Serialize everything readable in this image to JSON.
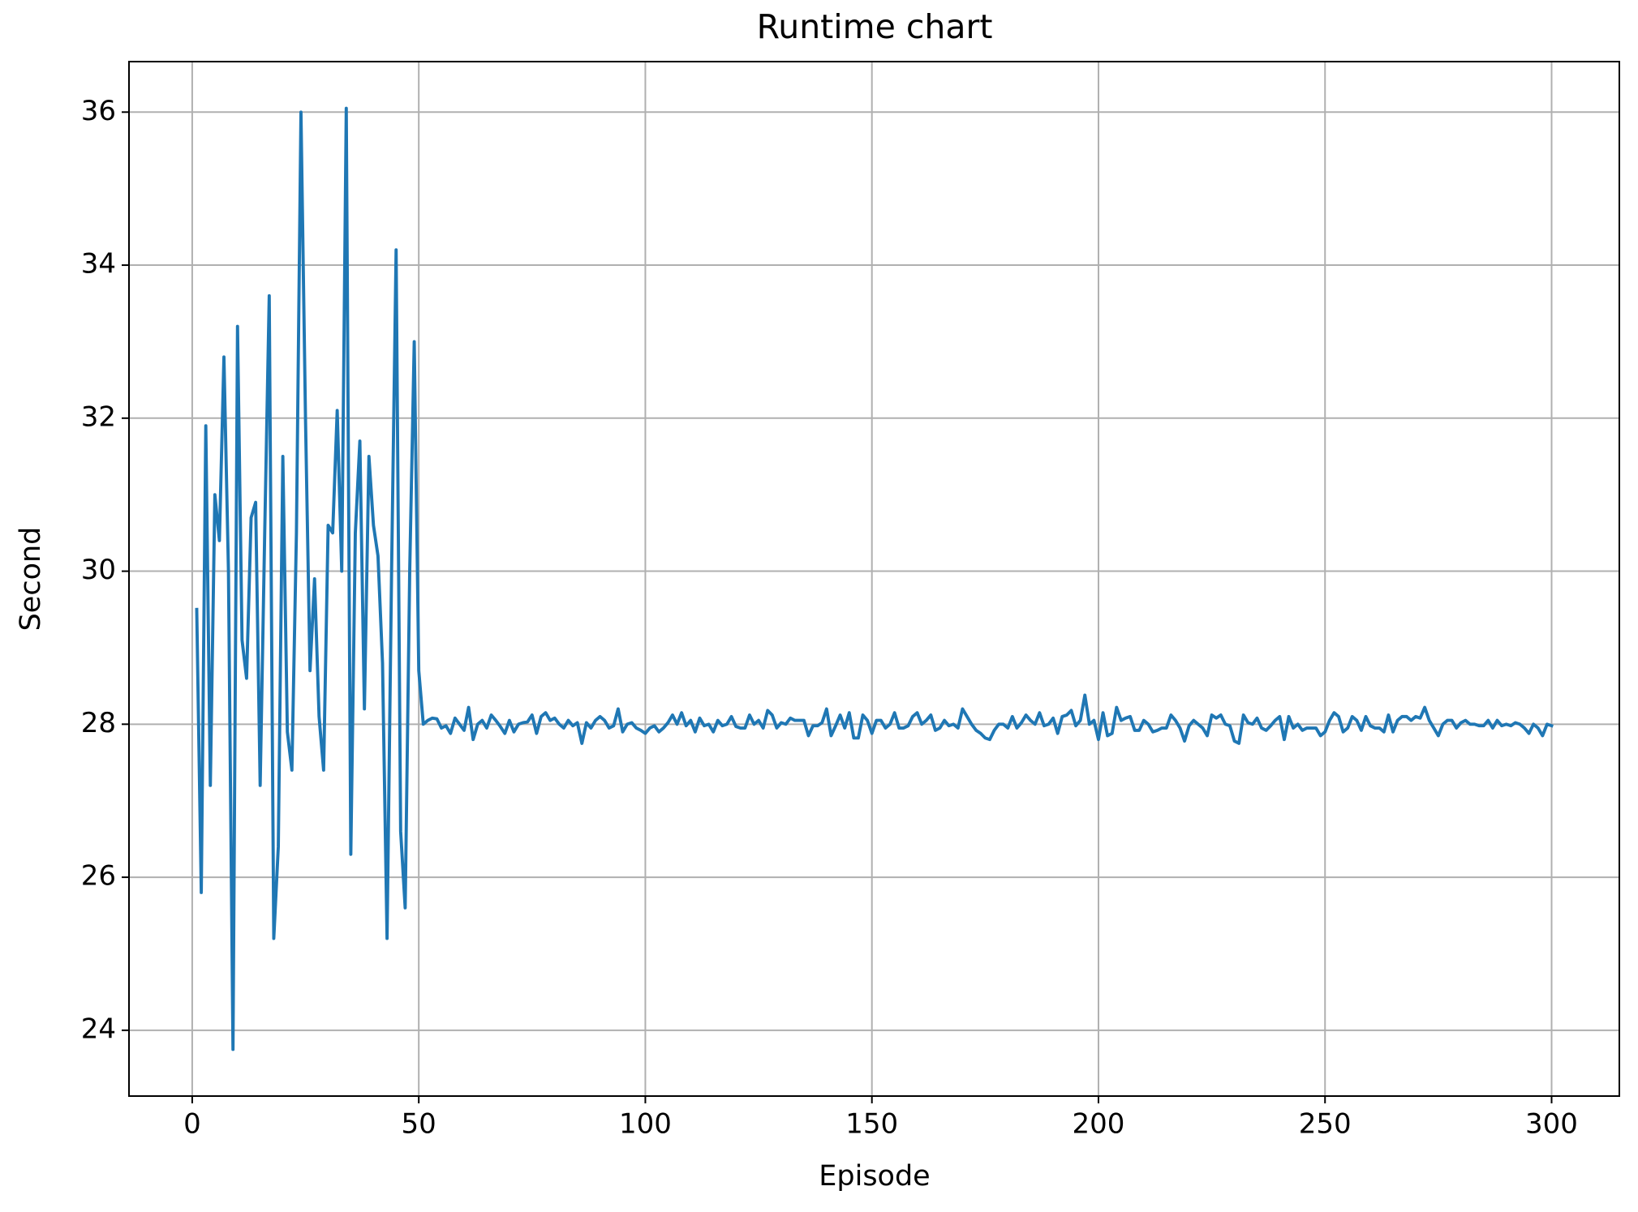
{
  "chart_data": {
    "type": "line",
    "title": "Runtime chart",
    "x_label": "Episode",
    "y_label": "Second",
    "x": [
      1,
      2,
      3,
      4,
      5,
      6,
      7,
      8,
      9,
      10,
      11,
      12,
      13,
      14,
      15,
      16,
      17,
      18,
      19,
      20,
      21,
      22,
      23,
      24,
      25,
      26,
      27,
      28,
      29,
      30,
      31,
      32,
      33,
      34,
      35,
      36,
      37,
      38,
      39,
      40,
      41,
      42,
      43,
      44,
      45,
      46,
      47,
      48,
      49,
      50,
      51,
      52,
      53,
      54,
      55,
      56,
      57,
      58,
      59,
      60,
      61,
      62,
      63,
      64,
      65,
      66,
      67,
      68,
      69,
      70,
      71,
      72,
      73,
      74,
      75,
      76,
      77,
      78,
      79,
      80,
      81,
      82,
      83,
      84,
      85,
      86,
      87,
      88,
      89,
      90,
      91,
      92,
      93,
      94,
      95,
      96,
      97,
      98,
      99,
      100,
      101,
      102,
      103,
      104,
      105,
      106,
      107,
      108,
      109,
      110,
      111,
      112,
      113,
      114,
      115,
      116,
      117,
      118,
      119,
      120,
      121,
      122,
      123,
      124,
      125,
      126,
      127,
      128,
      129,
      130,
      131,
      132,
      133,
      134,
      135,
      136,
      137,
      138,
      139,
      140,
      141,
      142,
      143,
      144,
      145,
      146,
      147,
      148,
      149,
      150,
      151,
      152,
      153,
      154,
      155,
      156,
      157,
      158,
      159,
      160,
      161,
      162,
      163,
      164,
      165,
      166,
      167,
      168,
      169,
      170,
      171,
      172,
      173,
      174,
      175,
      176,
      177,
      178,
      179,
      180,
      181,
      182,
      183,
      184,
      185,
      186,
      187,
      188,
      189,
      190,
      191,
      192,
      193,
      194,
      195,
      196,
      197,
      198,
      199,
      200,
      201,
      202,
      203,
      204,
      205,
      206,
      207,
      208,
      209,
      210,
      211,
      212,
      213,
      214,
      215,
      216,
      217,
      218,
      219,
      220,
      221,
      222,
      223,
      224,
      225,
      226,
      227,
      228,
      229,
      230,
      231,
      232,
      233,
      234,
      235,
      236,
      237,
      238,
      239,
      240,
      241,
      242,
      243,
      244,
      245,
      246,
      247,
      248,
      249,
      250,
      251,
      252,
      253,
      254,
      255,
      256,
      257,
      258,
      259,
      260,
      261,
      262,
      263,
      264,
      265,
      266,
      267,
      268,
      269,
      270,
      271,
      272,
      273,
      274,
      275,
      276,
      277,
      278,
      279,
      280,
      281,
      282,
      283,
      284,
      285,
      286,
      287,
      288,
      289,
      290,
      291,
      292,
      293,
      294,
      295,
      296,
      297,
      298,
      299,
      300
    ],
    "series": [
      {
        "color": "#1f77b4",
        "values": [
          29.5,
          25.8,
          31.9,
          27.2,
          31.0,
          30.4,
          32.8,
          30.0,
          23.75,
          33.2,
          29.1,
          28.6,
          30.7,
          30.9,
          27.2,
          30.5,
          33.6,
          25.2,
          26.4,
          31.5,
          27.9,
          27.4,
          30.5,
          36.0,
          32.0,
          28.7,
          29.9,
          28.1,
          27.4,
          30.6,
          30.5,
          32.1,
          30.0,
          36.05,
          26.3,
          30.5,
          31.7,
          28.2,
          31.5,
          30.6,
          30.2,
          28.8,
          25.2,
          30.0,
          34.2,
          26.6,
          25.6,
          30.0,
          33.0,
          28.7,
          28.0,
          28.05,
          28.08,
          28.07,
          27.95,
          27.98,
          27.88,
          28.08,
          28.0,
          27.92,
          28.22,
          27.8,
          28.0,
          28.05,
          27.95,
          28.12,
          28.05,
          27.97,
          27.88,
          28.05,
          27.9,
          28.0,
          28.02,
          28.03,
          28.12,
          27.88,
          28.1,
          28.15,
          28.05,
          28.08,
          28.0,
          27.95,
          28.05,
          27.98,
          28.02,
          27.75,
          28.02,
          27.95,
          28.05,
          28.1,
          28.05,
          27.95,
          27.98,
          28.2,
          27.9,
          28.0,
          28.02,
          27.95,
          27.92,
          27.88,
          27.95,
          27.98,
          27.9,
          27.95,
          28.02,
          28.12,
          28.0,
          28.15,
          27.98,
          28.05,
          27.9,
          28.08,
          27.98,
          28.0,
          27.9,
          28.05,
          27.98,
          28.0,
          28.1,
          27.97,
          27.95,
          27.95,
          28.12,
          28.0,
          28.05,
          27.95,
          28.18,
          28.12,
          27.95,
          28.02,
          28.0,
          28.08,
          28.05,
          28.05,
          28.05,
          27.85,
          27.98,
          27.98,
          28.02,
          28.2,
          27.85,
          27.98,
          28.12,
          27.95,
          28.15,
          27.82,
          27.82,
          28.12,
          28.05,
          27.88,
          28.05,
          28.05,
          27.95,
          28.0,
          28.15,
          27.95,
          27.95,
          27.98,
          28.1,
          28.15,
          28.0,
          28.05,
          28.12,
          27.92,
          27.95,
          28.05,
          27.98,
          28.0,
          27.95,
          28.2,
          28.1,
          28.0,
          27.92,
          27.88,
          27.82,
          27.8,
          27.92,
          28.0,
          28.0,
          27.95,
          28.1,
          27.95,
          28.02,
          28.12,
          28.05,
          28.0,
          28.15,
          27.98,
          28.0,
          28.08,
          27.88,
          28.1,
          28.12,
          28.18,
          27.98,
          28.05,
          28.38,
          28.0,
          28.05,
          27.8,
          28.15,
          27.85,
          27.88,
          28.22,
          28.05,
          28.08,
          28.1,
          27.92,
          27.92,
          28.05,
          28.0,
          27.9,
          27.92,
          27.95,
          27.95,
          28.12,
          28.05,
          27.95,
          27.78,
          27.98,
          28.05,
          28.0,
          27.95,
          27.85,
          28.12,
          28.08,
          28.12,
          28.0,
          27.98,
          27.78,
          27.75,
          28.12,
          28.02,
          28.0,
          28.08,
          27.95,
          27.92,
          27.98,
          28.05,
          28.1,
          27.8,
          28.1,
          27.95,
          28.0,
          27.92,
          27.95,
          27.95,
          27.95,
          27.85,
          27.9,
          28.05,
          28.15,
          28.1,
          27.9,
          27.95,
          28.1,
          28.05,
          27.92,
          28.1,
          27.98,
          27.95,
          27.95,
          27.9,
          28.12,
          27.9,
          28.05,
          28.1,
          28.1,
          28.05,
          28.1,
          28.08,
          28.22,
          28.05,
          27.95,
          27.85,
          28.0,
          28.05,
          28.05,
          27.95,
          28.02,
          28.05,
          28.0,
          28.0,
          27.98,
          27.98,
          28.05,
          27.95,
          28.05,
          27.98,
          28.0,
          27.98,
          28.02,
          28.0,
          27.95,
          27.88,
          28.0,
          27.95,
          27.85,
          28.0,
          27.98
        ]
      }
    ],
    "xlim": [
      -13.95,
      314.95
    ],
    "xticks": [
      0,
      50,
      100,
      150,
      200,
      250,
      300
    ],
    "ylim": [
      23.14,
      36.66
    ],
    "yticks": [
      24,
      26,
      28,
      30,
      32,
      34,
      36
    ],
    "grid": true
  }
}
